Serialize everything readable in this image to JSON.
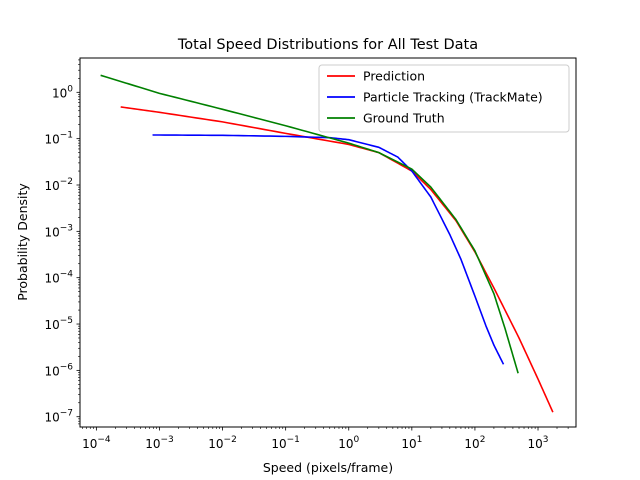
{
  "chart_data": {
    "type": "line",
    "title": "Total Speed Distributions for All Test Data",
    "xlabel": "Speed (pixels/frame)",
    "ylabel": "Probability Density",
    "xscale": "log",
    "yscale": "log",
    "xlim": [
      5.5e-05,
      4000
    ],
    "ylim": [
      6e-08,
      5.5
    ],
    "x_ticks": [
      {
        "value": 0.0001,
        "base": "10",
        "exp": "−4"
      },
      {
        "value": 0.001,
        "base": "10",
        "exp": "−3"
      },
      {
        "value": 0.01,
        "base": "10",
        "exp": "−2"
      },
      {
        "value": 0.1,
        "base": "10",
        "exp": "−1"
      },
      {
        "value": 1,
        "base": "10",
        "exp": "0"
      },
      {
        "value": 10,
        "base": "10",
        "exp": "1"
      },
      {
        "value": 100,
        "base": "10",
        "exp": "2"
      },
      {
        "value": 1000,
        "base": "10",
        "exp": "3"
      }
    ],
    "y_ticks": [
      {
        "value": 1e-07,
        "base": "10",
        "exp": "−7"
      },
      {
        "value": 1e-06,
        "base": "10",
        "exp": "−6"
      },
      {
        "value": 1e-05,
        "base": "10",
        "exp": "−5"
      },
      {
        "value": 0.0001,
        "base": "10",
        "exp": "−4"
      },
      {
        "value": 0.001,
        "base": "10",
        "exp": "−3"
      },
      {
        "value": 0.01,
        "base": "10",
        "exp": "−2"
      },
      {
        "value": 0.1,
        "base": "10",
        "exp": "−1"
      },
      {
        "value": 1,
        "base": "10",
        "exp": "0"
      }
    ],
    "grid": false,
    "legend_position": "top-right",
    "series": [
      {
        "name": "Prediction",
        "color": "#ff0000",
        "x": [
          0.00025,
          0.001,
          0.01,
          0.1,
          1,
          3,
          10,
          20,
          50,
          100,
          200,
          500,
          1000,
          1700
        ],
        "y": [
          0.48,
          0.37,
          0.23,
          0.13,
          0.075,
          0.05,
          0.02,
          0.008,
          0.0017,
          0.00036,
          6e-05,
          5e-06,
          6.5e-07,
          1.3e-07
        ]
      },
      {
        "name": "Particle Tracking (TrackMate)",
        "color": "#0000ff",
        "x": [
          0.0008,
          0.01,
          0.1,
          0.5,
          1,
          3,
          6,
          10,
          20,
          40,
          60,
          100,
          150,
          200,
          280
        ],
        "y": [
          0.12,
          0.118,
          0.112,
          0.105,
          0.095,
          0.065,
          0.04,
          0.02,
          0.0055,
          0.00085,
          0.00025,
          4e-05,
          9e-06,
          3.5e-06,
          1.4e-06
        ]
      },
      {
        "name": "Ground Truth",
        "color": "#008000",
        "x": [
          0.00012,
          0.001,
          0.01,
          0.1,
          1,
          3,
          10,
          20,
          50,
          100,
          200,
          300,
          480
        ],
        "y": [
          2.3,
          0.95,
          0.43,
          0.19,
          0.08,
          0.05,
          0.022,
          0.009,
          0.0018,
          0.00038,
          4.5e-05,
          8e-06,
          9e-07
        ]
      }
    ]
  }
}
